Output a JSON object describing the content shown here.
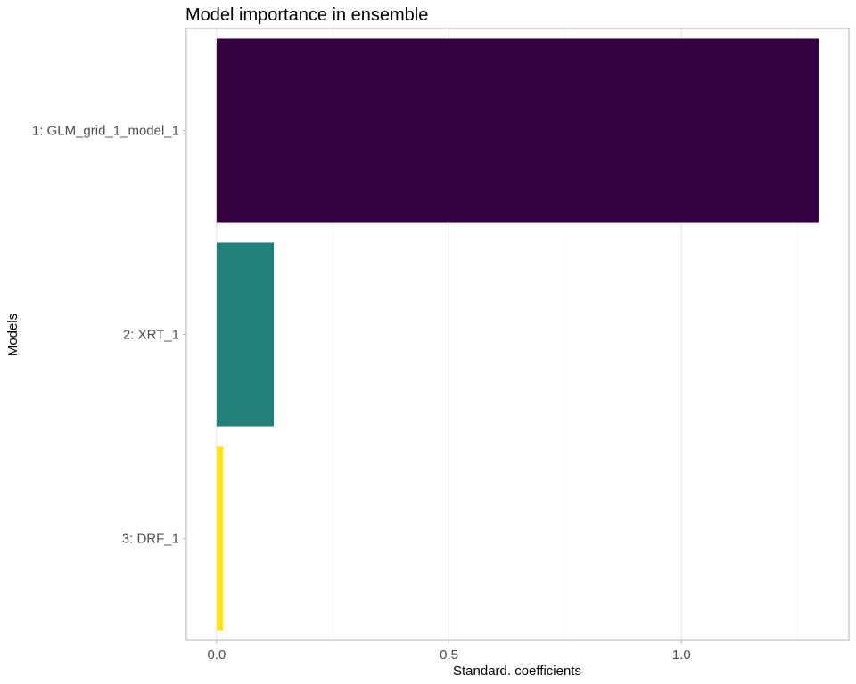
{
  "chart_data": {
    "type": "bar",
    "orientation": "horizontal",
    "title": "Model importance in ensemble",
    "xlabel": "Standard. coefficients",
    "ylabel": "Models",
    "categories": [
      "1: GLM_grid_1_model_1",
      "2: XRT_1",
      "3: DRF_1"
    ],
    "values": [
      1.295,
      0.123,
      0.014
    ],
    "colors": [
      "#35003f",
      "#21807a",
      "#fde11b"
    ],
    "xlim": [
      -0.065,
      1.36
    ],
    "xticks": [
      0.0,
      0.5,
      1.0
    ],
    "xtick_labels": [
      "0.0",
      "0.5",
      "1.0"
    ],
    "grid": true,
    "legend": "none"
  }
}
